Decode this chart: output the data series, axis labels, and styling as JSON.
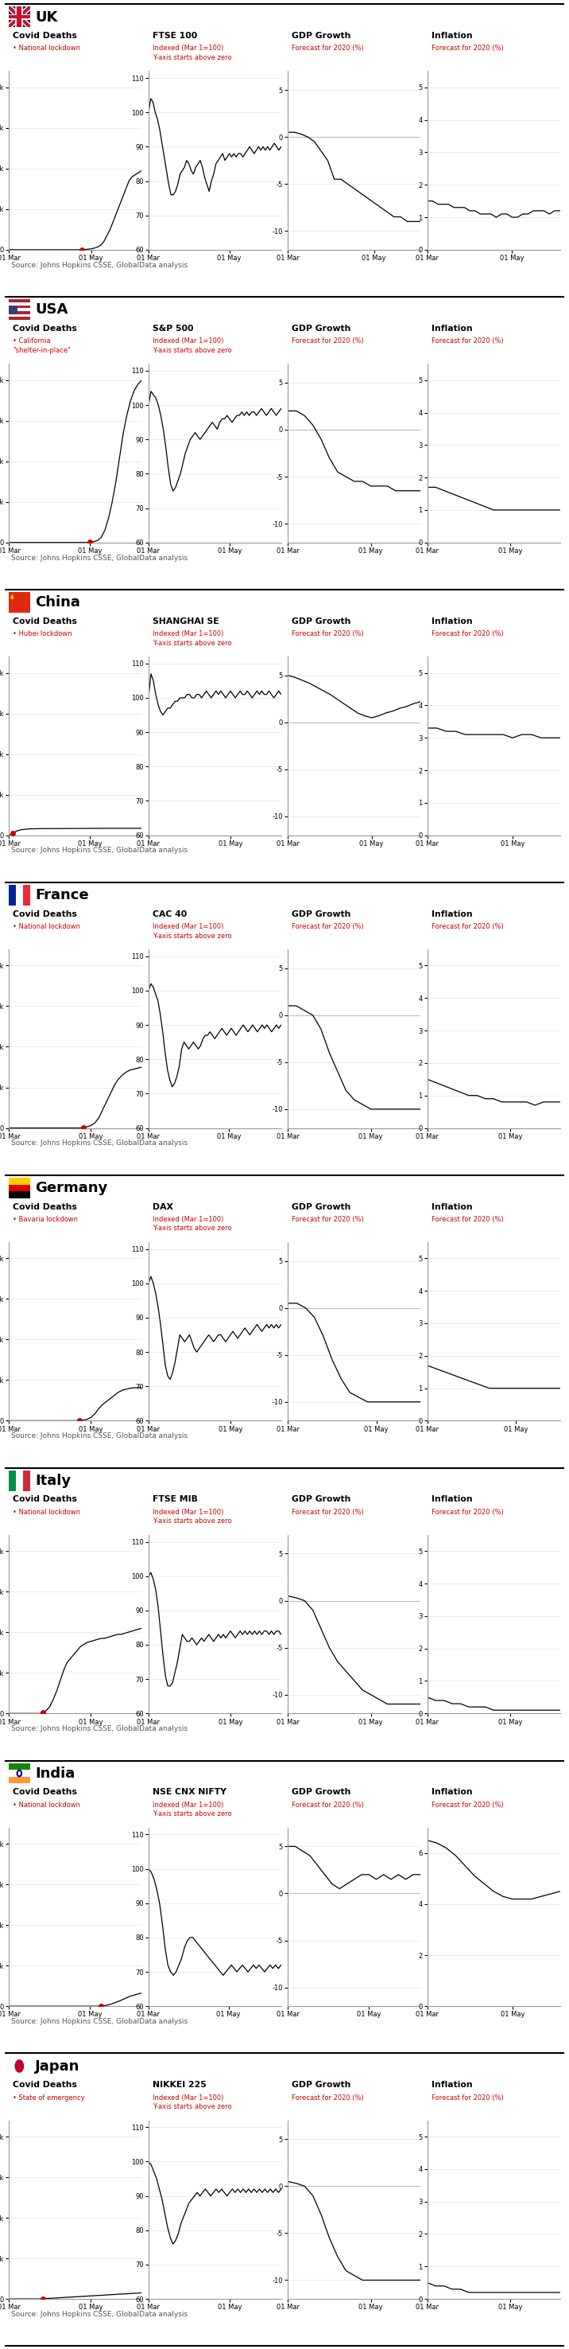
{
  "countries": [
    {
      "name": "UK",
      "lockdown_label": "National lockdown",
      "stock_label": "FTSE 100",
      "lockdown_day_idx": 23,
      "covid_deaths": [
        0,
        0,
        0,
        0,
        0,
        0,
        0,
        0,
        0,
        0,
        0,
        0,
        0,
        0,
        0,
        0,
        0,
        0,
        0,
        0,
        0,
        0,
        0,
        50,
        120,
        250,
        450,
        800,
        1300,
        2200,
        4000,
        7000,
        10000,
        14000,
        18000,
        22000,
        26000,
        30000,
        34000,
        36000,
        37000,
        38000,
        39000
      ],
      "stock": [
        100,
        104,
        103,
        100,
        98,
        95,
        91,
        87,
        83,
        79,
        76,
        76,
        77,
        79,
        82,
        83,
        84,
        86,
        85,
        83,
        82,
        84,
        85,
        86,
        84,
        81,
        79,
        77,
        80,
        82,
        85,
        86,
        87,
        88,
        86,
        87,
        88,
        87,
        88,
        87,
        88,
        88,
        87,
        88,
        89,
        90,
        89,
        88,
        89,
        90,
        89,
        90,
        89,
        90,
        89,
        90,
        91,
        90,
        89,
        90
      ],
      "gdp": [
        0.5,
        0.5,
        0.3,
        0.0,
        -0.5,
        -1.5,
        -2.5,
        -4.5,
        -4.5,
        -5.0,
        -5.5,
        -6.0,
        -6.5,
        -7.0,
        -7.5,
        -8.0,
        -8.5,
        -8.5,
        -9.0,
        -9.0,
        -9.0
      ],
      "inflation": [
        1.5,
        1.5,
        1.4,
        1.4,
        1.4,
        1.3,
        1.3,
        1.3,
        1.2,
        1.2,
        1.1,
        1.1,
        1.1,
        1.0,
        1.1,
        1.1,
        1.0,
        1.0,
        1.1,
        1.1,
        1.2,
        1.2,
        1.2,
        1.1,
        1.2,
        1.2
      ]
    },
    {
      "name": "USA",
      "lockdown_label": "California\n\"shelter-in-place\"",
      "stock_label": "S&P 500",
      "lockdown_day_idx": 22,
      "covid_deaths": [
        0,
        0,
        0,
        0,
        0,
        0,
        0,
        0,
        0,
        0,
        0,
        0,
        0,
        0,
        0,
        0,
        0,
        0,
        0,
        0,
        0,
        0,
        100,
        400,
        1000,
        2500,
        6000,
        12000,
        20000,
        30000,
        42000,
        54000,
        63000,
        70000,
        75000,
        78000,
        80000
      ],
      "stock": [
        100,
        104,
        103,
        102,
        100,
        97,
        93,
        88,
        82,
        77,
        75,
        76,
        78,
        80,
        83,
        86,
        88,
        90,
        91,
        92,
        91,
        90,
        91,
        92,
        93,
        94,
        95,
        94,
        93,
        95,
        96,
        96,
        97,
        96,
        95,
        96,
        97,
        97,
        98,
        97,
        98,
        97,
        98,
        98,
        97,
        98,
        99,
        98,
        97,
        98,
        99,
        98,
        97,
        98,
        99
      ],
      "gdp": [
        2.0,
        2.0,
        1.5,
        0.5,
        -1.0,
        -3.0,
        -4.5,
        -5.0,
        -5.5,
        -5.5,
        -6.0,
        -6.0,
        -6.0,
        -6.5,
        -6.5,
        -6.5,
        -6.5
      ],
      "inflation": [
        1.7,
        1.7,
        1.6,
        1.5,
        1.4,
        1.3,
        1.2,
        1.1,
        1.0,
        1.0,
        1.0,
        1.0,
        1.0,
        1.0,
        1.0,
        1.0,
        1.0
      ]
    },
    {
      "name": "China",
      "lockdown_label": "Hubei lockdown",
      "stock_label": "SHANGHAI SE",
      "lockdown_day_idx": 1,
      "covid_deaths": [
        0,
        1000,
        2000,
        2600,
        2900,
        3050,
        3150,
        3200,
        3220,
        3240,
        3250,
        3260,
        3270,
        3280,
        3290,
        3300,
        3300,
        3310,
        3320,
        3330,
        3340,
        3350,
        3360,
        3370,
        3380,
        3390,
        3400,
        3400,
        3400,
        3400,
        3400,
        3400,
        3400,
        3400,
        3400,
        3400,
        3400
      ],
      "stock": [
        100,
        107,
        105,
        101,
        98,
        96,
        95,
        96,
        97,
        97,
        98,
        99,
        99,
        100,
        100,
        100,
        101,
        101,
        100,
        100,
        101,
        101,
        100,
        101,
        102,
        101,
        100,
        101,
        102,
        101,
        102,
        101,
        100,
        101,
        102,
        101,
        100,
        101,
        102,
        101,
        101,
        102,
        101,
        100,
        101,
        102,
        101,
        102,
        101,
        101,
        102,
        101,
        100,
        101,
        102,
        101
      ],
      "gdp": [
        5.0,
        4.8,
        4.5,
        4.2,
        3.8,
        3.4,
        3.0,
        2.5,
        2.0,
        1.5,
        1.0,
        0.7,
        0.5,
        0.7,
        1.0,
        1.2,
        1.5,
        1.7,
        2.0,
        2.2
      ],
      "inflation": [
        3.3,
        3.3,
        3.2,
        3.2,
        3.1,
        3.1,
        3.1,
        3.1,
        3.1,
        3.0,
        3.1,
        3.1,
        3.0,
        3.0,
        3.0
      ]
    },
    {
      "name": "France",
      "lockdown_label": "National lockdown",
      "stock_label": "CAC 40",
      "lockdown_day_idx": 19,
      "covid_deaths": [
        0,
        0,
        0,
        0,
        0,
        0,
        0,
        0,
        0,
        0,
        0,
        0,
        0,
        0,
        0,
        0,
        0,
        0,
        0,
        200,
        600,
        1200,
        2500,
        5000,
        9000,
        13000,
        17000,
        21000,
        24000,
        26000,
        27500,
        28500,
        29000,
        29500,
        30000
      ],
      "stock": [
        100,
        102,
        101,
        99,
        97,
        93,
        88,
        82,
        77,
        74,
        72,
        73,
        75,
        78,
        83,
        85,
        84,
        83,
        84,
        85,
        84,
        83,
        84,
        86,
        87,
        87,
        88,
        87,
        86,
        87,
        88,
        89,
        88,
        87,
        88,
        89,
        88,
        87,
        88,
        89,
        90,
        89,
        88,
        89,
        90,
        89,
        88,
        89,
        90,
        89,
        90,
        89,
        88,
        89,
        90,
        89,
        90
      ],
      "gdp": [
        1.0,
        1.0,
        0.5,
        0.0,
        -1.5,
        -4.0,
        -6.0,
        -8.0,
        -9.0,
        -9.5,
        -10.0,
        -10.0,
        -10.0,
        -10.0,
        -10.0,
        -10.0,
        -10.0
      ],
      "inflation": [
        1.5,
        1.4,
        1.3,
        1.2,
        1.1,
        1.0,
        1.0,
        0.9,
        0.9,
        0.8,
        0.8,
        0.8,
        0.8,
        0.7,
        0.8,
        0.8,
        0.8
      ]
    },
    {
      "name": "Germany",
      "lockdown_label": "Bavaria lockdown",
      "stock_label": "DAX",
      "lockdown_day_idx": 18,
      "covid_deaths": [
        0,
        0,
        0,
        0,
        0,
        0,
        0,
        0,
        0,
        0,
        0,
        0,
        0,
        0,
        0,
        0,
        0,
        0,
        100,
        300,
        700,
        1600,
        3400,
        6000,
        8000,
        9500,
        11000,
        12500,
        14000,
        15000,
        15500,
        16000,
        16200,
        16300,
        16400
      ],
      "stock": [
        100,
        102,
        100,
        97,
        93,
        88,
        82,
        76,
        73,
        72,
        74,
        77,
        81,
        85,
        84,
        83,
        84,
        85,
        83,
        81,
        80,
        81,
        82,
        83,
        84,
        85,
        84,
        83,
        84,
        85,
        85,
        84,
        83,
        84,
        85,
        86,
        85,
        84,
        85,
        86,
        87,
        86,
        85,
        86,
        87,
        88,
        87,
        86,
        87,
        88,
        87,
        88,
        87,
        88,
        87,
        88
      ],
      "gdp": [
        0.5,
        0.5,
        0.0,
        -1.0,
        -3.0,
        -5.5,
        -7.5,
        -9.0,
        -9.5,
        -10.0,
        -10.0,
        -10.0,
        -10.0,
        -10.0,
        -10.0,
        -10.0
      ],
      "inflation": [
        1.7,
        1.6,
        1.5,
        1.4,
        1.3,
        1.2,
        1.1,
        1.0,
        1.0,
        1.0,
        1.0,
        1.0,
        1.0,
        1.0,
        1.0,
        1.0
      ]
    },
    {
      "name": "Italy",
      "lockdown_label": "National lockdown",
      "stock_label": "FTSE MIB",
      "lockdown_day_idx": 10,
      "covid_deaths": [
        0,
        0,
        0,
        0,
        0,
        0,
        0,
        0,
        0,
        0,
        500,
        1500,
        3500,
        7000,
        11000,
        16000,
        21000,
        25000,
        27000,
        29000,
        31000,
        33000,
        34000,
        35000,
        35500,
        36000,
        36500,
        37000,
        37000,
        37500,
        38000,
        38500,
        39000,
        39000,
        39500,
        40000,
        40500,
        41000,
        41500,
        42000
      ],
      "stock": [
        100,
        101,
        99,
        96,
        91,
        84,
        77,
        71,
        68,
        68,
        69,
        72,
        75,
        79,
        83,
        82,
        81,
        81,
        82,
        81,
        80,
        81,
        82,
        81,
        82,
        83,
        82,
        81,
        82,
        83,
        82,
        83,
        82,
        83,
        84,
        83,
        82,
        83,
        84,
        83,
        84,
        83,
        84,
        83,
        84,
        83,
        84,
        83,
        84,
        84,
        83,
        84,
        83,
        84,
        84,
        83
      ],
      "gdp": [
        0.5,
        0.3,
        0.0,
        -1.0,
        -3.0,
        -5.0,
        -6.5,
        -7.5,
        -8.5,
        -9.5,
        -10.0,
        -10.5,
        -11.0,
        -11.0,
        -11.0,
        -11.0,
        -11.0
      ],
      "inflation": [
        0.5,
        0.4,
        0.4,
        0.3,
        0.3,
        0.2,
        0.2,
        0.2,
        0.1,
        0.1,
        0.1,
        0.1,
        0.1,
        0.1,
        0.1,
        0.1,
        0.1
      ]
    },
    {
      "name": "India",
      "lockdown_label": "National lockdown",
      "stock_label": "NSE CNX NIFTY",
      "lockdown_day_idx": 25,
      "covid_deaths": [
        0,
        0,
        0,
        0,
        0,
        0,
        0,
        0,
        0,
        0,
        0,
        0,
        0,
        0,
        0,
        0,
        0,
        0,
        0,
        0,
        0,
        0,
        0,
        0,
        0,
        100,
        300,
        700,
        1200,
        1900,
        2600,
        3400,
        4200,
        5000,
        5500,
        6000,
        6500
      ],
      "stock": [
        100,
        99,
        97,
        94,
        90,
        84,
        77,
        72,
        70,
        69,
        70,
        72,
        74,
        77,
        79,
        80,
        80,
        79,
        78,
        77,
        76,
        75,
        74,
        73,
        72,
        71,
        70,
        69,
        70,
        71,
        72,
        71,
        70,
        71,
        72,
        71,
        70,
        71,
        72,
        71,
        72,
        71,
        70,
        71,
        72,
        71,
        72,
        71,
        72
      ],
      "gdp": [
        5.0,
        5.0,
        4.5,
        4.0,
        3.0,
        2.0,
        1.0,
        0.5,
        1.0,
        1.5,
        2.0,
        2.0,
        1.5,
        2.0,
        1.5,
        2.0,
        1.5,
        2.0,
        2.0
      ],
      "inflation": [
        6.5,
        6.4,
        6.2,
        5.9,
        5.5,
        5.1,
        4.8,
        4.5,
        4.3,
        4.2,
        4.2,
        4.2,
        4.3,
        4.4,
        4.5
      ]
    },
    {
      "name": "Japan",
      "lockdown_label": "State of emergency",
      "stock_label": "NIKKEI 225",
      "lockdown_day_idx": 10,
      "covid_deaths": [
        0,
        0,
        0,
        0,
        0,
        0,
        0,
        0,
        0,
        0,
        100,
        200,
        300,
        400,
        500,
        600,
        700,
        800,
        900,
        1000,
        1100,
        1200,
        1300,
        1400,
        1500,
        1600,
        1700,
        1800,
        1900,
        2000,
        2100,
        2200,
        2300,
        2400,
        2500,
        2600,
        2700,
        2800,
        2900,
        3000
      ],
      "stock": [
        100,
        99,
        97,
        95,
        92,
        89,
        85,
        81,
        78,
        76,
        77,
        79,
        82,
        84,
        86,
        88,
        89,
        90,
        91,
        90,
        91,
        92,
        91,
        90,
        91,
        92,
        91,
        92,
        91,
        90,
        91,
        92,
        91,
        92,
        91,
        92,
        91,
        92,
        91,
        92,
        91,
        92,
        91,
        92,
        91,
        92,
        91,
        92,
        91,
        92
      ],
      "gdp": [
        0.5,
        0.3,
        0.0,
        -1.0,
        -3.0,
        -5.5,
        -7.5,
        -9.0,
        -9.5,
        -10.0,
        -10.0,
        -10.0,
        -10.0,
        -10.0,
        -10.0,
        -10.0,
        -10.0
      ],
      "inflation": [
        0.5,
        0.4,
        0.4,
        0.3,
        0.3,
        0.2,
        0.2,
        0.2,
        0.2,
        0.2,
        0.2,
        0.2,
        0.2,
        0.2,
        0.2,
        0.2,
        0.2
      ]
    }
  ],
  "source_text": "Source: Johns Hopkins CSSE, GlobalData analysis",
  "red_color": "#CC0000",
  "line_color": "#000000",
  "grid_color": "#DDDDDD"
}
